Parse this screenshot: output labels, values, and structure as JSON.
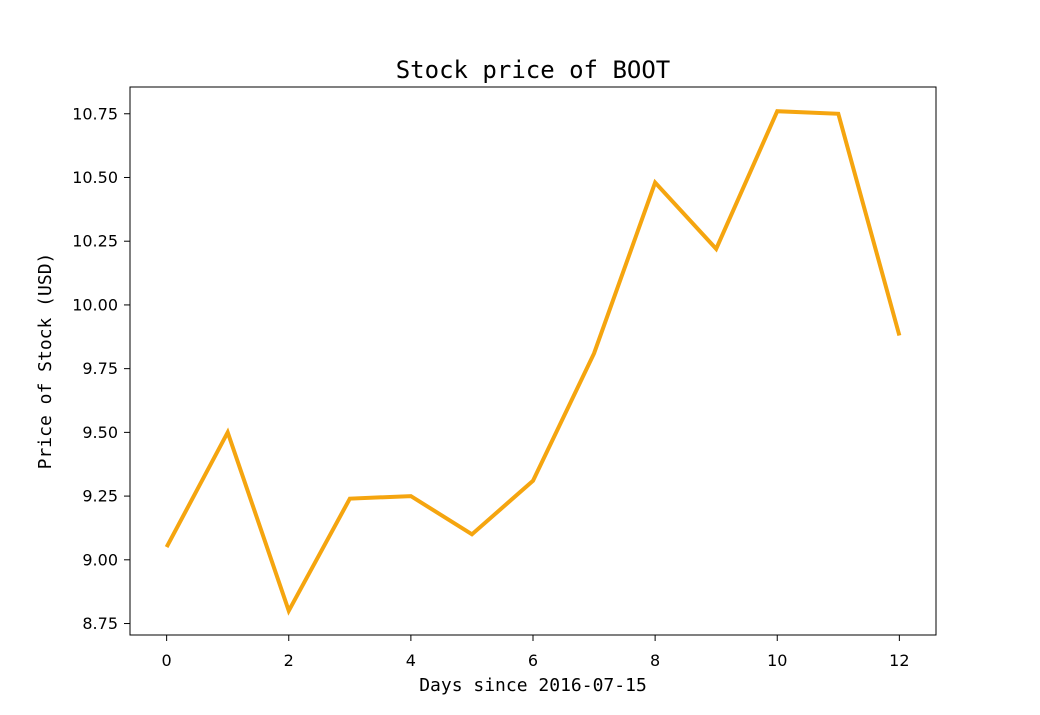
{
  "chart_data": {
    "type": "line",
    "title": "Stock price of BOOT",
    "xlabel": "Days since 2016-07-15",
    "ylabel": "Price of Stock (USD)",
    "x": [
      0,
      1,
      2,
      3,
      4,
      5,
      6,
      7,
      8,
      9,
      10,
      11,
      12
    ],
    "series": [
      {
        "values": [
          9.05,
          9.5,
          8.8,
          9.24,
          9.25,
          9.1,
          9.31,
          9.81,
          10.48,
          10.22,
          10.76,
          10.75,
          9.88
        ]
      }
    ],
    "xlim": [
      -0.6,
      12.6
    ],
    "ylim": [
      8.705,
      10.855
    ],
    "xticks": [
      0,
      2,
      4,
      6,
      8,
      10,
      12
    ],
    "xtick_labels": [
      "0",
      "2",
      "4",
      "6",
      "8",
      "10",
      "12"
    ],
    "yticks": [
      8.75,
      9.0,
      9.25,
      9.5,
      9.75,
      10.0,
      10.25,
      10.5,
      10.75
    ],
    "ytick_labels": [
      "8.75",
      "9.00",
      "9.25",
      "9.50",
      "9.75",
      "10.00",
      "10.25",
      "10.50",
      "10.75"
    ],
    "grid": false,
    "legend": "none",
    "line_color": "#f5a50f"
  }
}
